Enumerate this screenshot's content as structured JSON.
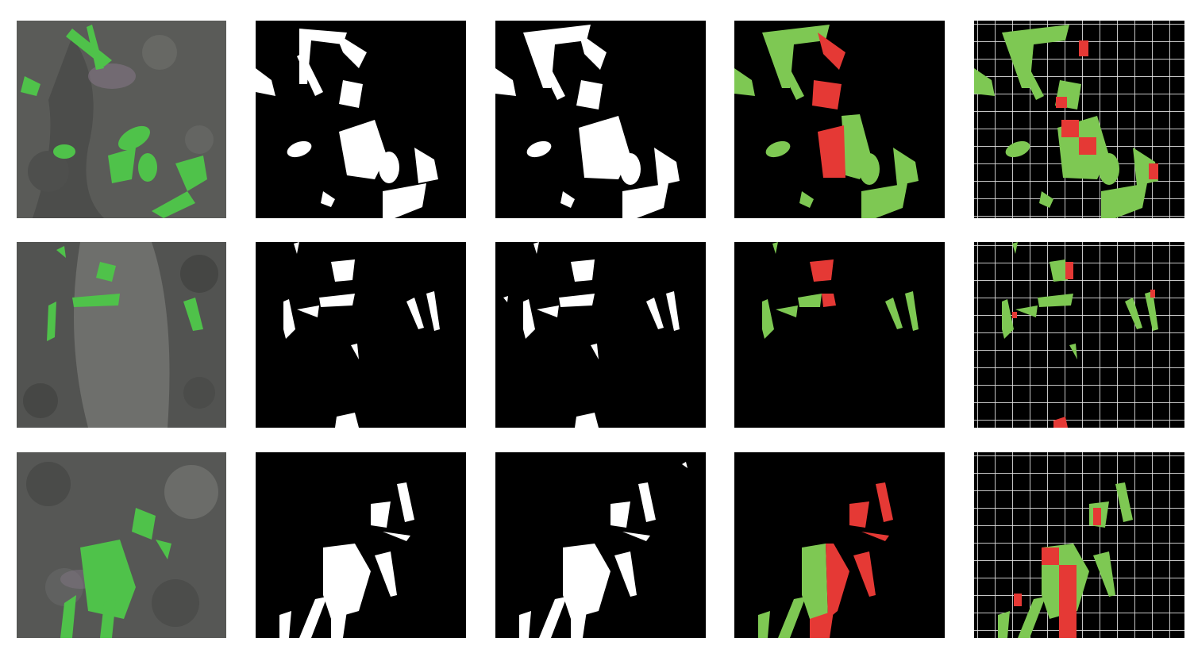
{
  "figure": {
    "rows": [
      {
        "name": "row-1",
        "panels": [
          "field-image",
          "ground-truth-mask",
          "predicted-mask",
          "crop-weed-classification",
          "grid-classification"
        ]
      },
      {
        "name": "row-2",
        "panels": [
          "field-image",
          "ground-truth-mask",
          "predicted-mask",
          "crop-weed-classification",
          "grid-classification"
        ]
      },
      {
        "name": "row-3",
        "panels": [
          "field-image",
          "ground-truth-mask",
          "predicted-mask",
          "crop-weed-classification",
          "grid-classification"
        ]
      }
    ]
  },
  "colors": {
    "background": "#ffffff",
    "soil": "#595a58",
    "vegetation_field": "#4fc24a",
    "mask_foreground": "#ffffff",
    "mask_background": "#000000",
    "crop": "#7ec853",
    "weed": "#e53935",
    "grid_line": "#e6e6e6"
  }
}
